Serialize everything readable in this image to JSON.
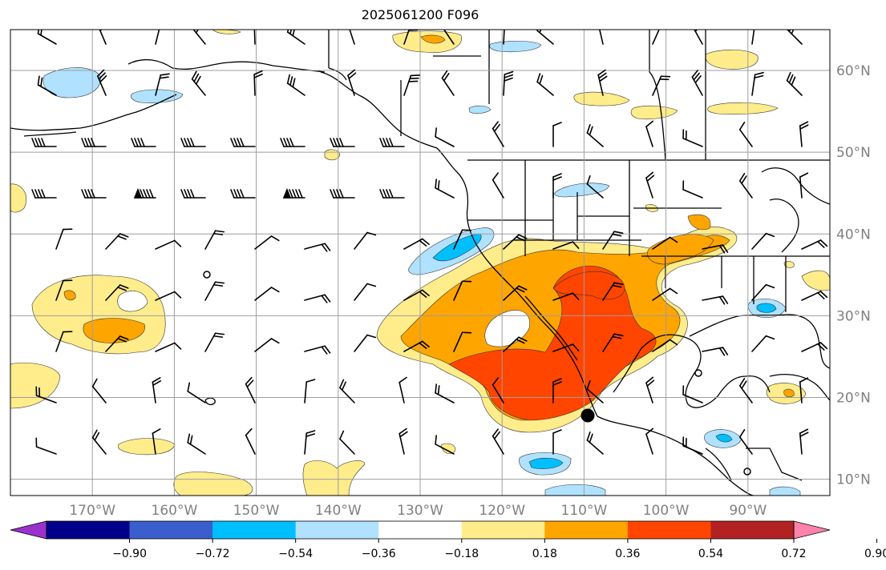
{
  "map": {
    "title": "2025061200 F096",
    "lon_labels": [
      "170°W",
      "160°W",
      "150°W",
      "140°W",
      "130°W",
      "120°W",
      "110°W",
      "100°W",
      "90°W"
    ],
    "lat_labels": [
      "60°N",
      "50°N",
      "40°N",
      "30°N",
      "20°N",
      "10°N"
    ],
    "extent": {
      "lon_min": -180,
      "lon_max": -80,
      "lat_min": 8,
      "lat_max": 65
    },
    "gridlines": true
  },
  "colorbar": {
    "tick_labels": [
      "−0.90",
      "−0.72",
      "−0.54",
      "−0.36",
      "−0.18",
      "0.18",
      "0.36",
      "0.54",
      "0.72",
      "0.90"
    ],
    "colors": [
      "#9932cc",
      "#00008b",
      "#3a5fcd",
      "#00bfff",
      "#b0e2ff",
      "#ffffff",
      "#ffec8b",
      "#ffa500",
      "#ff4500",
      "#b22222",
      "#ff82ab"
    ],
    "extend": "both"
  }
}
